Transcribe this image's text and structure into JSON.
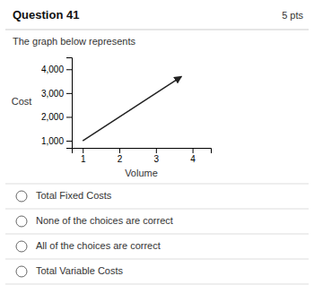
{
  "chart_data": {
    "type": "line",
    "title": "Question 41",
    "annotations": [
      "5 pts"
    ],
    "subtitle": "The graph below represents",
    "x": [
      1.0,
      3.7
    ],
    "values": [
      1000,
      3700
    ],
    "color": "#222222",
    "xlabel": "Volume",
    "ylabel": "Cost",
    "xlim": [
      0.7,
      4.5
    ],
    "ylim": [
      700,
      4500
    ],
    "xticks": [
      1,
      2,
      3,
      4
    ],
    "yticks": [
      {
        "value": 1000,
        "label": "1,000"
      },
      {
        "value": 2000,
        "label": "2,000"
      },
      {
        "value": 3000,
        "label": "3,000"
      },
      {
        "value": 4000,
        "label": "4,000"
      }
    ],
    "choices": [
      "Total Fixed Costs",
      "None of the choices are correct",
      "All of the choices are correct",
      "Total Variable Costs"
    ]
  }
}
